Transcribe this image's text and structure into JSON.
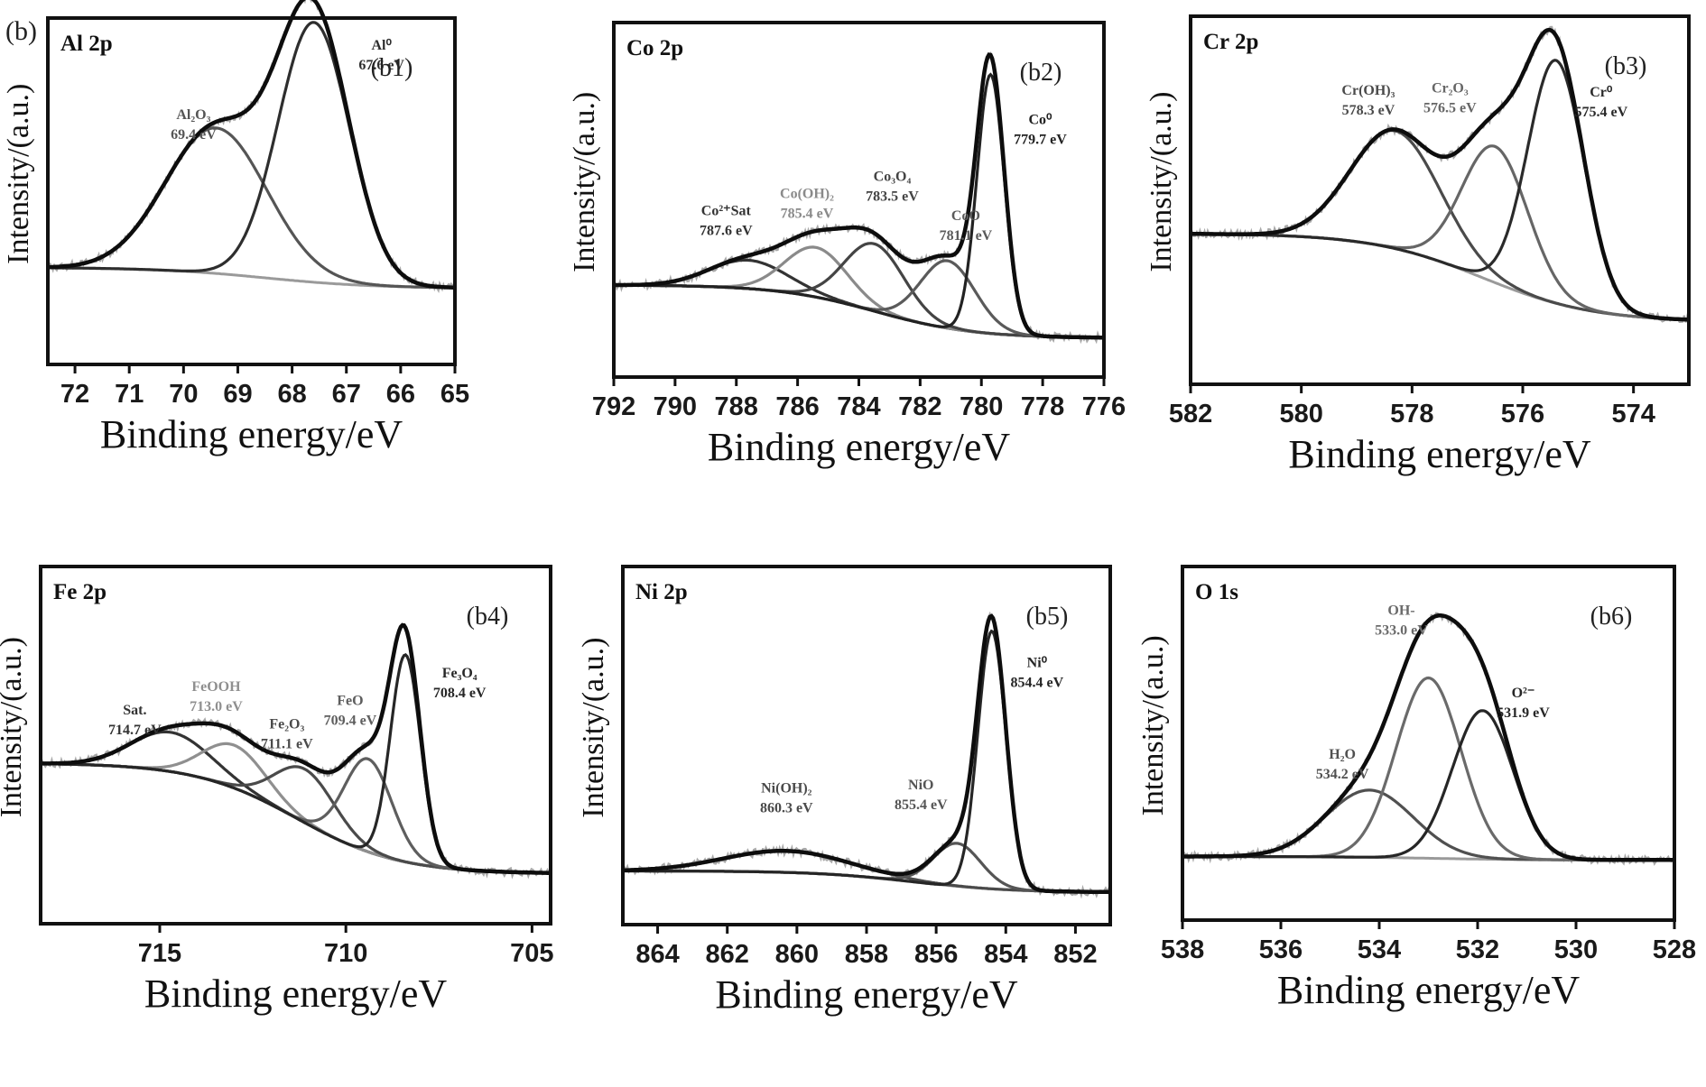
{
  "figure_label": "(b)",
  "chart_data": [
    {
      "id": "b1",
      "type": "line",
      "panel_label": "(b1)",
      "title": "Al 2p",
      "xlabel": "Binding energy/eV",
      "ylabel": "Intensity/(a.u.)",
      "xlim": [
        72.5,
        65
      ],
      "x_reversed": true,
      "xticks": [
        72,
        71,
        70,
        69,
        68,
        67,
        66,
        65
      ],
      "ylim": [
        0,
        1
      ],
      "grid": false,
      "background": {
        "start": 0.28,
        "end": 0.22
      },
      "envelope_peak": {
        "x": 67.8,
        "y": 0.9
      },
      "components": [
        {
          "name": "Al2O3",
          "label": "Al₂O₃",
          "energy_label": "69.4 eV",
          "center": 69.4,
          "height": 0.42,
          "fwhm": 2.2,
          "color": "#555555"
        },
        {
          "name": "Al0",
          "label": "Al⁰",
          "energy_label": "67.6 eV",
          "center": 67.6,
          "height": 0.75,
          "fwhm": 1.55,
          "color": "#2e2e2e"
        }
      ]
    },
    {
      "id": "b2",
      "type": "line",
      "panel_label": "(b2)",
      "title": "Co 2p",
      "xlabel": "Binding energy/eV",
      "ylabel": "Intensity/(a.u.)",
      "xlim": [
        792,
        776
      ],
      "x_reversed": true,
      "xticks": [
        792,
        790,
        788,
        786,
        784,
        782,
        780,
        778,
        776
      ],
      "ylim": [
        0,
        1
      ],
      "grid": false,
      "background": {
        "start": 0.26,
        "end": 0.11
      },
      "envelope_peak": {
        "x": 779.7,
        "y": 0.94
      },
      "components": [
        {
          "name": "Co2+ Sat",
          "label": "Co²⁺Sat",
          "energy_label": "787.6 eV",
          "center": 787.6,
          "height": 0.08,
          "fwhm": 3.0,
          "color": "#333333"
        },
        {
          "name": "Co(OH)2",
          "label": "Co(OH)₂",
          "energy_label": "785.4 eV",
          "center": 785.4,
          "height": 0.14,
          "fwhm": 2.4,
          "color": "#8a8a8a"
        },
        {
          "name": "Co3O4",
          "label": "Co₃O₄",
          "energy_label": "783.5 eV",
          "center": 783.5,
          "height": 0.19,
          "fwhm": 2.3,
          "color": "#444444"
        },
        {
          "name": "CoO",
          "label": "CoO",
          "energy_label": "781.1 eV",
          "center": 781.1,
          "height": 0.19,
          "fwhm": 2.1,
          "color": "#5a5a5a"
        },
        {
          "name": "Co0",
          "label": "Co⁰",
          "energy_label": "779.7 eV",
          "center": 779.7,
          "height": 0.73,
          "fwhm": 1.05,
          "color": "#222222"
        }
      ]
    },
    {
      "id": "b3",
      "type": "line",
      "panel_label": "(b3)",
      "title": "Cr 2p",
      "xlabel": "Binding energy/eV",
      "ylabel": "Intensity/(a.u.)",
      "xlim": [
        582,
        573
      ],
      "x_reversed": true,
      "xticks": [
        582,
        580,
        578,
        576,
        574
      ],
      "ylim": [
        0,
        1
      ],
      "grid": false,
      "background": {
        "start": 0.41,
        "end": 0.17
      },
      "envelope_peak": {
        "x": 575.7,
        "y": 0.93
      },
      "components": [
        {
          "name": "Cr(OH)3",
          "label": "Cr(OH)₃",
          "energy_label": "578.3 eV",
          "center": 578.3,
          "height": 0.32,
          "fwhm": 1.9,
          "color": "#4a4a4a"
        },
        {
          "name": "Cr2O3",
          "label": "Cr₂O₃",
          "energy_label": "576.5 eV",
          "center": 576.5,
          "height": 0.37,
          "fwhm": 1.4,
          "color": "#666666"
        },
        {
          "name": "Cr0",
          "label": "Cr⁰",
          "energy_label": "575.4 eV",
          "center": 575.4,
          "height": 0.66,
          "fwhm": 1.2,
          "color": "#2a2a2a"
        }
      ]
    },
    {
      "id": "b4",
      "type": "line",
      "panel_label": "(b4)",
      "title": "Fe 2p",
      "xlabel": "Binding energy/eV",
      "ylabel": "Intensity/(a.u.)",
      "xlim": [
        718.2,
        704.5
      ],
      "x_reversed": true,
      "xticks": [
        715,
        710,
        705
      ],
      "ylim": [
        0,
        1
      ],
      "grid": false,
      "background": {
        "start": 0.45,
        "end": 0.14
      },
      "envelope_peak": {
        "x": 708.4,
        "y": 0.87
      },
      "components": [
        {
          "name": "Sat.",
          "label": "Sat.",
          "energy_label": "714.7 eV",
          "center": 714.7,
          "height": 0.11,
          "fwhm": 2.5,
          "color": "#333333"
        },
        {
          "name": "FeOOH",
          "label": "FeOOH",
          "energy_label": "713.0 eV",
          "center": 713.0,
          "height": 0.12,
          "fwhm": 2.0,
          "color": "#8f8f8f"
        },
        {
          "name": "Fe2O3",
          "label": "Fe₂O₃",
          "energy_label": "711.1 eV",
          "center": 711.1,
          "height": 0.15,
          "fwhm": 1.9,
          "color": "#4a4a4a"
        },
        {
          "name": "FeO",
          "label": "FeO",
          "energy_label": "709.4 eV",
          "center": 709.4,
          "height": 0.26,
          "fwhm": 1.5,
          "color": "#5e5e5e"
        },
        {
          "name": "Fe3O4",
          "label": "Fe₃O₄",
          "energy_label": "708.4 eV",
          "center": 708.4,
          "height": 0.58,
          "fwhm": 0.95,
          "color": "#262626"
        }
      ]
    },
    {
      "id": "b5",
      "type": "line",
      "panel_label": "(b5)",
      "title": "Ni 2p",
      "xlabel": "Binding energy/eV",
      "ylabel": "Intensity/(a.u.)",
      "xlim": [
        865,
        851
      ],
      "x_reversed": true,
      "xticks": [
        864,
        862,
        860,
        858,
        856,
        854,
        852
      ],
      "ylim": [
        0,
        1
      ],
      "grid": false,
      "background": {
        "start": 0.15,
        "end": 0.09
      },
      "envelope_peak": {
        "x": 854.4,
        "y": 0.9
      },
      "components": [
        {
          "name": "Ni(OH)2",
          "label": "Ni(OH)₂",
          "energy_label": "860.3 eV",
          "center": 860.3,
          "height": 0.06,
          "fwhm": 4.2,
          "color": "#4a4a4a"
        },
        {
          "name": "NiO",
          "label": "NiO",
          "energy_label": "855.4 eV",
          "center": 855.4,
          "height": 0.12,
          "fwhm": 1.6,
          "color": "#555555"
        },
        {
          "name": "Ni0",
          "label": "Ni⁰",
          "energy_label": "854.4 eV",
          "center": 854.4,
          "height": 0.72,
          "fwhm": 0.95,
          "color": "#262626"
        }
      ]
    },
    {
      "id": "b6",
      "type": "line",
      "panel_label": "(b6)",
      "title": "O 1s",
      "xlabel": "Binding energy/eV",
      "ylabel": "Intensity/(a.u.)",
      "xlim": [
        538,
        528
      ],
      "x_reversed": true,
      "xticks": [
        538,
        536,
        534,
        532,
        530,
        528
      ],
      "ylim": [
        0,
        1
      ],
      "grid": false,
      "background": {
        "start": 0.18,
        "end": 0.17
      },
      "envelope_peak": {
        "x": 532.6,
        "y": 0.88
      },
      "components": [
        {
          "name": "H2O",
          "label": "H₂O",
          "energy_label": "534.2 eV",
          "center": 534.2,
          "height": 0.19,
          "fwhm": 2.1,
          "color": "#505050"
        },
        {
          "name": "OH-",
          "label": "OH-",
          "energy_label": "533.0 eV",
          "center": 533.0,
          "height": 0.51,
          "fwhm": 1.55,
          "color": "#6a6a6a"
        },
        {
          "name": "O2-",
          "label": "O²⁻",
          "energy_label": "531.9 eV",
          "center": 531.9,
          "height": 0.42,
          "fwhm": 1.45,
          "color": "#262626"
        }
      ]
    }
  ]
}
